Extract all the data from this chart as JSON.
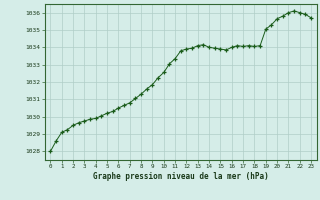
{
  "title": "Graphe pression niveau de la mer (hPa)",
  "background_color": "#d5ede8",
  "plot_bg_color": "#d5ede8",
  "grid_color": "#b0cec8",
  "line_color": "#1a5c1a",
  "marker_color": "#1a5c1a",
  "border_color": "#336633",
  "xlim": [
    -0.5,
    23.5
  ],
  "ylim": [
    1027.5,
    1036.5
  ],
  "yticks": [
    1028,
    1029,
    1030,
    1031,
    1032,
    1033,
    1034,
    1035,
    1036
  ],
  "xticks": [
    0,
    1,
    2,
    3,
    4,
    5,
    6,
    7,
    8,
    9,
    10,
    11,
    12,
    13,
    14,
    15,
    16,
    17,
    18,
    19,
    20,
    21,
    22,
    23
  ],
  "x": [
    0,
    0.5,
    1,
    1.5,
    2,
    2.5,
    3,
    3.5,
    4,
    4.5,
    5,
    5.5,
    6,
    6.5,
    7,
    7.5,
    8,
    8.5,
    9,
    9.5,
    10,
    10.5,
    11,
    11.5,
    12,
    12.5,
    13,
    13.5,
    14,
    14.5,
    15,
    15.5,
    16,
    16.5,
    17,
    17.5,
    18,
    18.5,
    19,
    19.5,
    20,
    20.5,
    21,
    21.5,
    22,
    22.5,
    23
  ],
  "y": [
    1028.0,
    1028.6,
    1029.1,
    1029.25,
    1029.5,
    1029.65,
    1029.75,
    1029.85,
    1029.9,
    1030.05,
    1030.2,
    1030.3,
    1030.5,
    1030.65,
    1030.8,
    1031.05,
    1031.3,
    1031.6,
    1031.85,
    1032.25,
    1032.55,
    1033.05,
    1033.35,
    1033.8,
    1033.9,
    1033.95,
    1034.1,
    1034.15,
    1034.0,
    1033.95,
    1033.9,
    1033.85,
    1034.0,
    1034.1,
    1034.05,
    1034.1,
    1034.05,
    1034.1,
    1035.05,
    1035.3,
    1035.65,
    1035.8,
    1036.0,
    1036.1,
    1036.0,
    1035.9,
    1035.7
  ]
}
